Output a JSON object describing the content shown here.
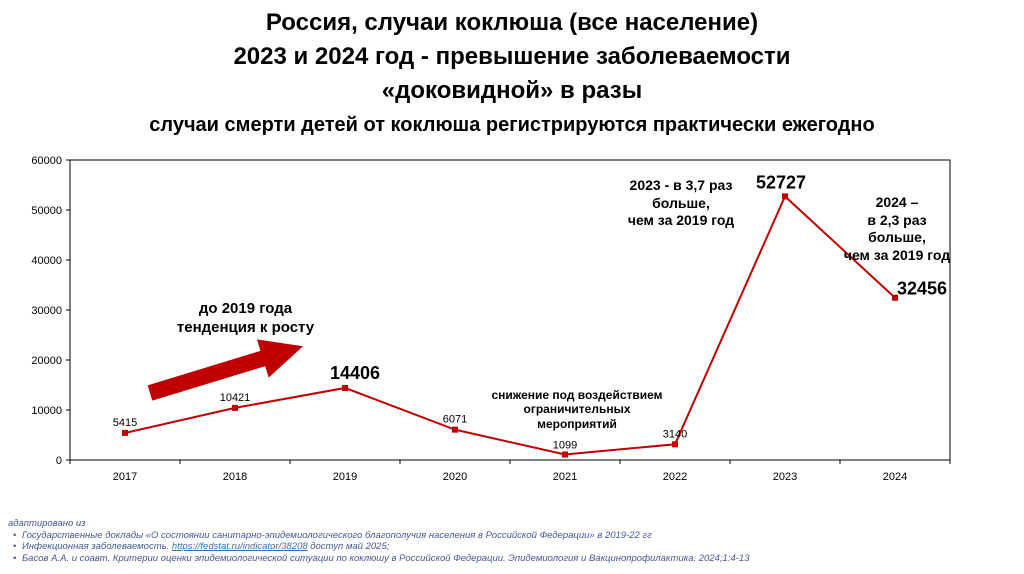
{
  "title": {
    "line1": "Россия, случаи коклюша (все население)",
    "line2": "2023 и 2024 год - превышение заболеваемости",
    "line3": "«доковидной» в разы",
    "subtitle": "случаи смерти детей от коклюша регистрируются практически ежегодно"
  },
  "chart_data": {
    "type": "line",
    "categories": [
      "2017",
      "2018",
      "2019",
      "2020",
      "2021",
      "2022",
      "2023",
      "2024"
    ],
    "values": [
      5415,
      10421,
      14406,
      6071,
      1099,
      3140,
      52727,
      32456
    ],
    "title": "",
    "xlabel": "",
    "ylabel": "",
    "ylim": [
      0,
      60000
    ],
    "yticks": [
      0,
      10000,
      20000,
      30000,
      40000,
      50000,
      60000
    ],
    "grid": false,
    "legend": false,
    "line_color": "#C00000",
    "annotations": {
      "trend": "до 2019 года\nтенденция к росту",
      "decline": "снижение под воздействием\nограничительных\nмероприятий",
      "y2023": "2023 - в 3,7 раз\nбольше,\nчем за 2019 год",
      "y2024": "2024 –\nв 2,3 раз\nбольше,\nчем за 2019 год"
    }
  },
  "colors": {
    "line": "#C00000",
    "footer_text": "#44569b",
    "link": "#2e75b6"
  },
  "footer": {
    "intro": "адаптировано из",
    "bullet_char": "•",
    "items": [
      {
        "text": "Государственные доклады «О состоянии санитарно-эпидемиологического благополучия населения в Российской Федерации» в 2019-22 гг"
      },
      {
        "prefix": "Инфекционная заболеваемость. ",
        "link": "https://fedstat.ru/indicator/38208",
        "suffix": " доступ май 2025;"
      },
      {
        "text": "Басов А.А. и соавт. Критерии оценки эпидемиологической ситуации по коклюшу в Российской Федерации. Эпидемиология и Вакцинопрофилактика. 2024;1:4-13"
      }
    ]
  }
}
